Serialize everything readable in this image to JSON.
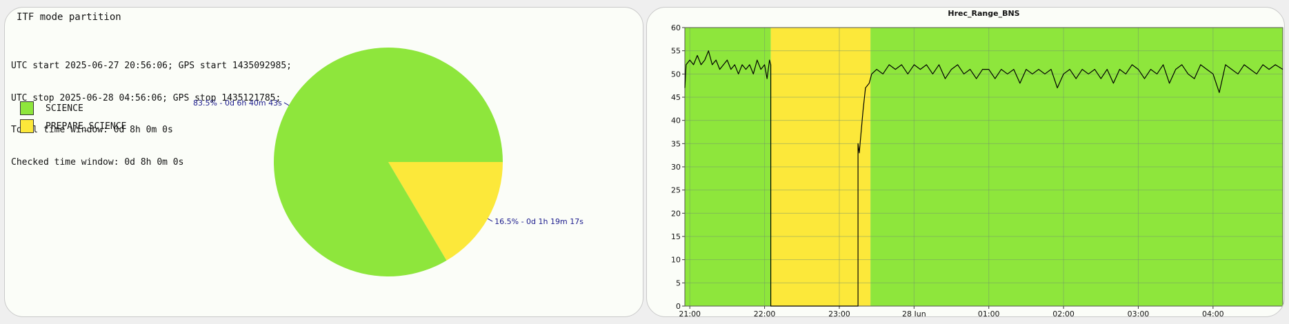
{
  "left_panel": {
    "title": "ITF mode partition",
    "info_lines": [
      "UTC start 2025-06-27 20:56:06; GPS start 1435092985;",
      "UTC stop 2025-06-28 04:56:06; GPS stop 1435121785;",
      "Total time window: 0d 8h 0m 0s",
      "Checked time window: 0d 8h 0m 0s"
    ],
    "legend": [
      {
        "label": "SCIENCE",
        "color": "#8ee63c"
      },
      {
        "label": "PREPARE_SCIENCE",
        "color": "#fce83a"
      }
    ]
  },
  "chart_data": [
    {
      "type": "pie",
      "title": "ITF mode partition",
      "slices": [
        {
          "label": "SCIENCE",
          "percent": 83.5,
          "text": "83.5% - 0d 6h 40m 43s",
          "color": "#8ee63c"
        },
        {
          "label": "PREPARE_SCIENCE",
          "percent": 16.5,
          "text": "16.5% - 0d 1h 19m 17s",
          "color": "#fce83a"
        }
      ],
      "label_color": "#1a1a8c"
    },
    {
      "type": "line",
      "title": "Hrec_Range_BNS",
      "x_start_utc": "2025-06-27 20:56",
      "x_end_utc": "2025-06-28 04:56",
      "x_ticks": [
        "21:00",
        "22:00",
        "23:00",
        "28 Jun",
        "01:00",
        "02:00",
        "03:00",
        "04:00"
      ],
      "ylim": [
        0,
        60
      ],
      "y_ticks": [
        0,
        5,
        10,
        15,
        20,
        25,
        30,
        35,
        40,
        45,
        50,
        55,
        60
      ],
      "grid": true,
      "line_color": "#000000",
      "bands": [
        {
          "label": "SCIENCE",
          "start": "20:56",
          "end": "22:05",
          "color": "#8ee63c"
        },
        {
          "label": "PREPARE_SCIENCE",
          "start": "22:05",
          "end": "23:25",
          "color": "#fce83a"
        },
        {
          "label": "SCIENCE",
          "start": "23:25",
          "end": "04:56",
          "color": "#8ee63c"
        }
      ],
      "series": [
        {
          "points": [
            [
              "20:56",
              47
            ],
            [
              "20:57",
              52
            ],
            [
              "21:00",
              53
            ],
            [
              "21:03",
              52
            ],
            [
              "21:06",
              54
            ],
            [
              "21:09",
              52
            ],
            [
              "21:12",
              53
            ],
            [
              "21:15",
              55
            ],
            [
              "21:18",
              52
            ],
            [
              "21:21",
              53
            ],
            [
              "21:24",
              51
            ],
            [
              "21:27",
              52
            ],
            [
              "21:30",
              53
            ],
            [
              "21:33",
              51
            ],
            [
              "21:36",
              52
            ],
            [
              "21:39",
              50
            ],
            [
              "21:42",
              52
            ],
            [
              "21:45",
              51
            ],
            [
              "21:48",
              52
            ],
            [
              "21:51",
              50
            ],
            [
              "21:54",
              53
            ],
            [
              "21:57",
              51
            ],
            [
              "22:00",
              52
            ],
            [
              "22:02",
              49
            ],
            [
              "22:04",
              53
            ],
            [
              "22:05",
              52
            ],
            [
              "22:05",
              0
            ],
            [
              "23:15",
              0
            ],
            [
              "23:15",
              35
            ],
            [
              "23:16",
              33
            ],
            [
              "23:17",
              36
            ],
            [
              "23:19",
              42
            ],
            [
              "23:21",
              47
            ],
            [
              "23:24",
              48
            ],
            [
              "23:26",
              50
            ],
            [
              "23:30",
              51
            ],
            [
              "23:35",
              50
            ],
            [
              "23:40",
              52
            ],
            [
              "23:45",
              51
            ],
            [
              "23:50",
              52
            ],
            [
              "23:55",
              50
            ],
            [
              "00:00",
              52
            ],
            [
              "00:05",
              51
            ],
            [
              "00:10",
              52
            ],
            [
              "00:15",
              50
            ],
            [
              "00:20",
              52
            ],
            [
              "00:25",
              49
            ],
            [
              "00:30",
              51
            ],
            [
              "00:35",
              52
            ],
            [
              "00:40",
              50
            ],
            [
              "00:45",
              51
            ],
            [
              "00:50",
              49
            ],
            [
              "00:55",
              51
            ],
            [
              "01:00",
              51
            ],
            [
              "01:05",
              49
            ],
            [
              "01:10",
              51
            ],
            [
              "01:15",
              50
            ],
            [
              "01:20",
              51
            ],
            [
              "01:25",
              48
            ],
            [
              "01:30",
              51
            ],
            [
              "01:35",
              50
            ],
            [
              "01:40",
              51
            ],
            [
              "01:45",
              50
            ],
            [
              "01:50",
              51
            ],
            [
              "01:55",
              47
            ],
            [
              "02:00",
              50
            ],
            [
              "02:05",
              51
            ],
            [
              "02:10",
              49
            ],
            [
              "02:15",
              51
            ],
            [
              "02:20",
              50
            ],
            [
              "02:25",
              51
            ],
            [
              "02:30",
              49
            ],
            [
              "02:35",
              51
            ],
            [
              "02:40",
              48
            ],
            [
              "02:45",
              51
            ],
            [
              "02:50",
              50
            ],
            [
              "02:55",
              52
            ],
            [
              "03:00",
              51
            ],
            [
              "03:05",
              49
            ],
            [
              "03:10",
              51
            ],
            [
              "03:15",
              50
            ],
            [
              "03:20",
              52
            ],
            [
              "03:25",
              48
            ],
            [
              "03:30",
              51
            ],
            [
              "03:35",
              52
            ],
            [
              "03:40",
              50
            ],
            [
              "03:45",
              49
            ],
            [
              "03:50",
              52
            ],
            [
              "03:55",
              51
            ],
            [
              "04:00",
              50
            ],
            [
              "04:05",
              46
            ],
            [
              "04:10",
              52
            ],
            [
              "04:15",
              51
            ],
            [
              "04:20",
              50
            ],
            [
              "04:25",
              52
            ],
            [
              "04:30",
              51
            ],
            [
              "04:35",
              50
            ],
            [
              "04:40",
              52
            ],
            [
              "04:45",
              51
            ],
            [
              "04:50",
              52
            ],
            [
              "04:56",
              51
            ]
          ]
        }
      ]
    }
  ]
}
